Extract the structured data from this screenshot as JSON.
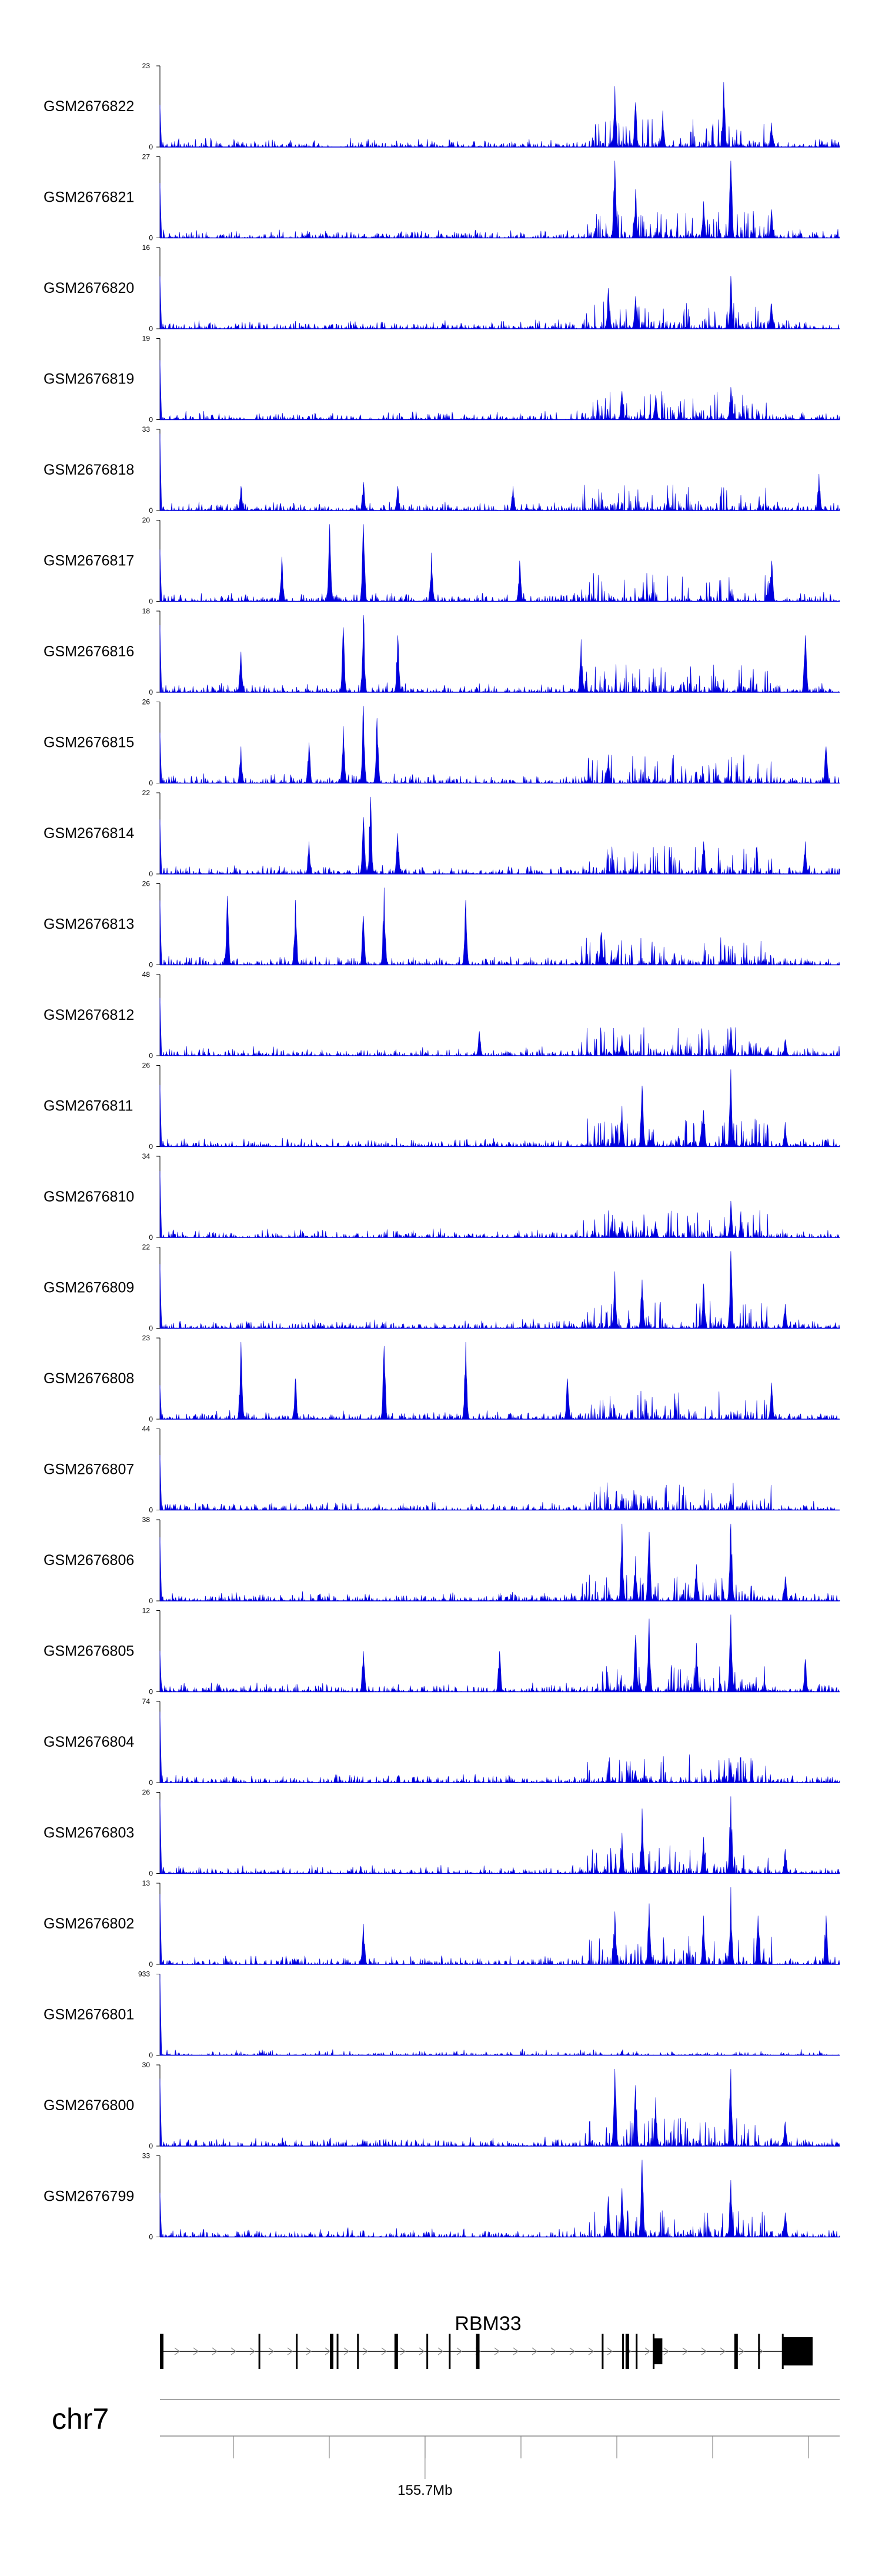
{
  "chart_data": {
    "type": "area",
    "genome_browser": true,
    "color": "#0000dd",
    "tracks": [
      {
        "name": "GSM2676822",
        "ymax": "23",
        "ymin": "0",
        "peaks": [
          [
            0.83,
            0.8
          ],
          [
            0.67,
            0.75
          ],
          [
            0.7,
            0.55
          ],
          [
            0.74,
            0.45
          ],
          [
            0.9,
            0.3
          ]
        ]
      },
      {
        "name": "GSM2676821",
        "ymax": "27",
        "ymin": "0",
        "peaks": [
          [
            0.67,
            0.95
          ],
          [
            0.84,
            0.95
          ],
          [
            0.7,
            0.6
          ],
          [
            0.8,
            0.45
          ],
          [
            0.9,
            0.35
          ]
        ]
      },
      {
        "name": "GSM2676820",
        "ymax": "16",
        "ymin": "0",
        "peaks": [
          [
            0.84,
            0.65
          ],
          [
            0.66,
            0.5
          ],
          [
            0.7,
            0.4
          ],
          [
            0.9,
            0.3
          ]
        ]
      },
      {
        "name": "GSM2676819",
        "ymax": "19",
        "ymin": "0",
        "peaks": [
          [
            0.84,
            0.4
          ],
          [
            0.68,
            0.35
          ],
          [
            0.73,
            0.3
          ]
        ]
      },
      {
        "name": "GSM2676818",
        "ymax": "33",
        "ymin": "0",
        "peaks": [
          [
            0.97,
            0.45
          ],
          [
            0.3,
            0.35
          ],
          [
            0.35,
            0.3
          ],
          [
            0.12,
            0.3
          ],
          [
            0.52,
            0.3
          ]
        ]
      },
      {
        "name": "GSM2676817",
        "ymax": "20",
        "ymin": "0",
        "peaks": [
          [
            0.25,
            0.95
          ],
          [
            0.3,
            0.95
          ],
          [
            0.3,
            0.95
          ],
          [
            0.18,
            0.55
          ],
          [
            0.4,
            0.6
          ],
          [
            0.9,
            0.5
          ],
          [
            0.53,
            0.5
          ]
        ]
      },
      {
        "name": "GSM2676816",
        "ymax": "18",
        "ymin": "0",
        "peaks": [
          [
            0.3,
            0.95
          ],
          [
            0.27,
            0.8
          ],
          [
            0.35,
            0.7
          ],
          [
            0.62,
            0.65
          ],
          [
            0.95,
            0.7
          ],
          [
            0.12,
            0.5
          ]
        ]
      },
      {
        "name": "GSM2676815",
        "ymax": "26",
        "ymin": "0",
        "peaks": [
          [
            0.3,
            0.95
          ],
          [
            0.32,
            0.8
          ],
          [
            0.27,
            0.7
          ],
          [
            0.22,
            0.5
          ],
          [
            0.12,
            0.45
          ],
          [
            0.66,
            0.35
          ],
          [
            0.98,
            0.45
          ]
        ]
      },
      {
        "name": "GSM2676814",
        "ymax": "22",
        "ymin": "0",
        "peaks": [
          [
            0.31,
            0.95
          ],
          [
            0.3,
            0.7
          ],
          [
            0.35,
            0.5
          ],
          [
            0.22,
            0.4
          ],
          [
            0.8,
            0.4
          ],
          [
            0.95,
            0.4
          ]
        ]
      },
      {
        "name": "GSM2676813",
        "ymax": "26",
        "ymin": "0",
        "peaks": [
          [
            0.33,
            0.95
          ],
          [
            0.1,
            0.85
          ],
          [
            0.2,
            0.8
          ],
          [
            0.45,
            0.8
          ],
          [
            0.3,
            0.6
          ],
          [
            0.65,
            0.4
          ]
        ]
      },
      {
        "name": "GSM2676812",
        "ymax": "48",
        "ymin": "0",
        "peaks": [
          [
            0.84,
            0.35
          ],
          [
            0.47,
            0.3
          ],
          [
            0.68,
            0.25
          ],
          [
            0.92,
            0.2
          ]
        ]
      },
      {
        "name": "GSM2676811",
        "ymax": "26",
        "ymin": "0",
        "peaks": [
          [
            0.84,
            0.95
          ],
          [
            0.71,
            0.75
          ],
          [
            0.68,
            0.5
          ],
          [
            0.8,
            0.45
          ],
          [
            0.92,
            0.3
          ]
        ]
      },
      {
        "name": "GSM2676810",
        "ymax": "34",
        "ymin": "0",
        "peaks": [
          [
            0.84,
            0.45
          ],
          [
            0.68,
            0.2
          ],
          [
            0.73,
            0.2
          ]
        ]
      },
      {
        "name": "GSM2676809",
        "ymax": "22",
        "ymin": "0",
        "peaks": [
          [
            0.84,
            0.95
          ],
          [
            0.67,
            0.7
          ],
          [
            0.71,
            0.6
          ],
          [
            0.8,
            0.55
          ],
          [
            0.92,
            0.3
          ]
        ]
      },
      {
        "name": "GSM2676808",
        "ymax": "23",
        "ymin": "0",
        "peaks": [
          [
            0.12,
            0.95
          ],
          [
            0.45,
            0.95
          ],
          [
            0.33,
            0.9
          ],
          [
            0.2,
            0.5
          ],
          [
            0.6,
            0.5
          ],
          [
            0.9,
            0.45
          ]
        ]
      },
      {
        "name": "GSM2676807",
        "ymax": "44",
        "ymin": "0",
        "peaks": [
          [
            0.68,
            0.2
          ],
          [
            0.84,
            0.2
          ],
          [
            0.72,
            0.15
          ]
        ]
      },
      {
        "name": "GSM2676806",
        "ymax": "38",
        "ymin": "0",
        "peaks": [
          [
            0.84,
            0.95
          ],
          [
            0.68,
            0.95
          ],
          [
            0.72,
            0.85
          ],
          [
            0.7,
            0.55
          ],
          [
            0.79,
            0.45
          ],
          [
            0.92,
            0.3
          ]
        ]
      },
      {
        "name": "GSM2676805",
        "ymax": "12",
        "ymin": "0",
        "peaks": [
          [
            0.72,
            0.9
          ],
          [
            0.84,
            0.95
          ],
          [
            0.7,
            0.7
          ],
          [
            0.79,
            0.6
          ],
          [
            0.3,
            0.5
          ],
          [
            0.5,
            0.5
          ],
          [
            0.95,
            0.4
          ]
        ]
      },
      {
        "name": "GSM2676804",
        "ymax": "74",
        "ymin": "0",
        "peaks": [
          [
            0.84,
            0.25
          ],
          [
            0.7,
            0.15
          ]
        ]
      },
      {
        "name": "GSM2676803",
        "ymax": "26",
        "ymin": "0",
        "peaks": [
          [
            0.84,
            0.95
          ],
          [
            0.71,
            0.8
          ],
          [
            0.68,
            0.5
          ],
          [
            0.8,
            0.45
          ],
          [
            0.92,
            0.3
          ]
        ]
      },
      {
        "name": "GSM2676802",
        "ymax": "13",
        "ymin": "0",
        "peaks": [
          [
            0.84,
            0.95
          ],
          [
            0.72,
            0.75
          ],
          [
            0.67,
            0.65
          ],
          [
            0.8,
            0.6
          ],
          [
            0.3,
            0.5
          ],
          [
            0.88,
            0.6
          ],
          [
            0.98,
            0.6
          ]
        ]
      },
      {
        "name": "GSM2676801",
        "ymax": "933",
        "ymin": "0",
        "peaks": []
      },
      {
        "name": "GSM2676800",
        "ymax": "30",
        "ymin": "0",
        "peaks": [
          [
            0.67,
            0.95
          ],
          [
            0.84,
            0.95
          ],
          [
            0.7,
            0.75
          ],
          [
            0.73,
            0.6
          ],
          [
            0.92,
            0.3
          ]
        ]
      },
      {
        "name": "GSM2676799",
        "ymax": "33",
        "ymin": "0",
        "peaks": [
          [
            0.71,
            0.95
          ],
          [
            0.84,
            0.7
          ],
          [
            0.68,
            0.6
          ],
          [
            0.66,
            0.5
          ],
          [
            0.92,
            0.3
          ]
        ]
      }
    ],
    "gene": {
      "name": "RBM33",
      "exons": [
        0.0,
        0.145,
        0.2,
        0.25,
        0.26,
        0.29,
        0.345,
        0.392,
        0.425,
        0.465,
        0.65,
        0.68,
        0.685,
        0.7,
        0.725,
        0.845,
        0.88,
        0.915
      ]
    },
    "chromosome": "chr7",
    "axis": {
      "label": "155.7Mb",
      "label_position": 0.39
    }
  }
}
